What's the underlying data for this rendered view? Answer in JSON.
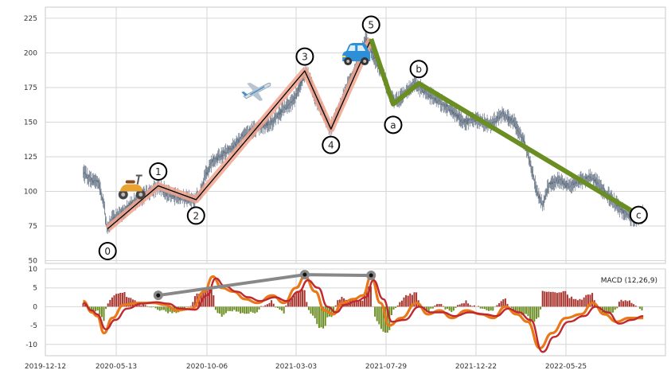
{
  "chart_data": [
    {
      "type": "line",
      "panel": "price",
      "x_ticks": [
        "2019-12-12",
        "2020-05-13",
        "2020-10-06",
        "2021-03-03",
        "2021-07-29",
        "2021-12-22",
        "2022-05-25"
      ],
      "y_ticks": [
        50,
        75,
        100,
        125,
        150,
        175,
        200,
        225
      ],
      "ylim": [
        48,
        233
      ],
      "grid": true,
      "price_series": [
        {
          "x": "2020-02-15",
          "y": 113
        },
        {
          "x": "2020-03-01",
          "y": 108
        },
        {
          "x": "2020-03-12",
          "y": 106
        },
        {
          "x": "2020-03-22",
          "y": 90
        },
        {
          "x": "2020-03-27",
          "y": 72
        },
        {
          "x": "2020-04-05",
          "y": 80
        },
        {
          "x": "2020-04-20",
          "y": 84
        },
        {
          "x": "2020-05-05",
          "y": 90
        },
        {
          "x": "2020-05-25",
          "y": 96
        },
        {
          "x": "2020-06-10",
          "y": 100
        },
        {
          "x": "2020-06-25",
          "y": 104
        },
        {
          "x": "2020-07-10",
          "y": 98
        },
        {
          "x": "2020-07-25",
          "y": 96
        },
        {
          "x": "2020-08-10",
          "y": 95
        },
        {
          "x": "2020-08-25",
          "y": 94
        },
        {
          "x": "2020-09-05",
          "y": 100
        },
        {
          "x": "2020-09-12",
          "y": 112
        },
        {
          "x": "2020-09-25",
          "y": 122
        },
        {
          "x": "2020-10-10",
          "y": 126
        },
        {
          "x": "2020-10-30",
          "y": 132
        },
        {
          "x": "2020-11-20",
          "y": 142
        },
        {
          "x": "2020-12-10",
          "y": 146
        },
        {
          "x": "2021-01-05",
          "y": 150
        },
        {
          "x": "2021-01-25",
          "y": 160
        },
        {
          "x": "2021-02-12",
          "y": 166
        },
        {
          "x": "2021-02-25",
          "y": 180
        },
        {
          "x": "2021-03-05",
          "y": 187
        },
        {
          "x": "2021-03-20",
          "y": 168
        },
        {
          "x": "2021-04-05",
          "y": 154
        },
        {
          "x": "2021-04-15",
          "y": 145
        },
        {
          "x": "2021-04-30",
          "y": 160
        },
        {
          "x": "2021-05-15",
          "y": 178
        },
        {
          "x": "2021-05-30",
          "y": 190
        },
        {
          "x": "2021-06-15",
          "y": 210
        },
        {
          "x": "2021-06-30",
          "y": 196
        },
        {
          "x": "2021-07-15",
          "y": 185
        },
        {
          "x": "2021-07-25",
          "y": 170
        },
        {
          "x": "2021-08-05",
          "y": 165
        },
        {
          "x": "2021-08-20",
          "y": 170
        },
        {
          "x": "2021-09-05",
          "y": 178
        },
        {
          "x": "2021-09-25",
          "y": 172
        },
        {
          "x": "2021-10-15",
          "y": 166
        },
        {
          "x": "2021-11-05",
          "y": 160
        },
        {
          "x": "2021-11-30",
          "y": 150
        },
        {
          "x": "2021-12-20",
          "y": 152
        },
        {
          "x": "2022-01-15",
          "y": 148
        },
        {
          "x": "2022-02-05",
          "y": 156
        },
        {
          "x": "2022-02-25",
          "y": 150
        },
        {
          "x": "2022-03-15",
          "y": 135
        },
        {
          "x": "2022-03-25",
          "y": 120
        },
        {
          "x": "2022-04-05",
          "y": 100
        },
        {
          "x": "2022-04-15",
          "y": 90
        },
        {
          "x": "2022-04-25",
          "y": 104
        },
        {
          "x": "2022-05-10",
          "y": 108
        },
        {
          "x": "2022-05-30",
          "y": 104
        },
        {
          "x": "2022-06-20",
          "y": 108
        },
        {
          "x": "2022-07-10",
          "y": 110
        },
        {
          "x": "2022-07-25",
          "y": 102
        },
        {
          "x": "2022-08-10",
          "y": 95
        },
        {
          "x": "2022-08-25",
          "y": 88
        },
        {
          "x": "2022-09-10",
          "y": 82
        },
        {
          "x": "2022-09-25",
          "y": 80
        },
        {
          "x": "2022-10-05",
          "y": 84
        }
      ],
      "wave_labels": [
        {
          "label": "0",
          "x": "2020-03-28",
          "y": 73
        },
        {
          "label": "1",
          "x": "2020-06-23",
          "y": 104
        },
        {
          "label": "2",
          "x": "2020-08-27",
          "y": 94
        },
        {
          "label": "3",
          "x": "2021-03-02",
          "y": 187
        },
        {
          "label": "4",
          "x": "2021-04-16",
          "y": 145
        },
        {
          "label": "5",
          "x": "2021-06-24",
          "y": 210
        },
        {
          "label": "a",
          "x": "2021-08-01",
          "y": 163
        },
        {
          "label": "b",
          "x": "2021-09-14",
          "y": 178
        },
        {
          "label": "c",
          "x": "2022-09-27",
          "y": 83
        }
      ],
      "impulse_color": "#f0a58e",
      "corrective_color": "#6b8e23",
      "icons": [
        "scooter-icon",
        "airplane-icon",
        "car-icon"
      ]
    },
    {
      "type": "bar",
      "panel": "macd",
      "legend": "MACD (12,26,9)",
      "y_ticks": [
        10,
        5,
        0,
        -5,
        -10
      ],
      "ylim": [
        -13,
        10
      ],
      "grid": true,
      "macd_line": [
        {
          "x": "2020-02-15",
          "y": 1.5
        },
        {
          "x": "2020-03-01",
          "y": -1.5
        },
        {
          "x": "2020-03-10",
          "y": -2.5
        },
        {
          "x": "2020-03-22",
          "y": -7
        },
        {
          "x": "2020-04-05",
          "y": -3
        },
        {
          "x": "2020-04-25",
          "y": 0.5
        },
        {
          "x": "2020-05-20",
          "y": 1
        },
        {
          "x": "2020-06-15",
          "y": 1
        },
        {
          "x": "2020-07-05",
          "y": 0.5
        },
        {
          "x": "2020-07-25",
          "y": -1
        },
        {
          "x": "2020-08-20",
          "y": -0.5
        },
        {
          "x": "2020-09-10",
          "y": 4
        },
        {
          "x": "2020-09-25",
          "y": 8
        },
        {
          "x": "2020-10-10",
          "y": 5
        },
        {
          "x": "2020-10-30",
          "y": 4
        },
        {
          "x": "2020-11-20",
          "y": 2
        },
        {
          "x": "2020-12-10",
          "y": 1
        },
        {
          "x": "2021-01-05",
          "y": 3
        },
        {
          "x": "2021-01-25",
          "y": 1
        },
        {
          "x": "2021-02-15",
          "y": 5
        },
        {
          "x": "2021-03-02",
          "y": 8
        },
        {
          "x": "2021-03-20",
          "y": 4
        },
        {
          "x": "2021-04-05",
          "y": -1
        },
        {
          "x": "2021-04-20",
          "y": -2
        },
        {
          "x": "2021-05-05",
          "y": 1
        },
        {
          "x": "2021-05-25",
          "y": 2
        },
        {
          "x": "2021-06-10",
          "y": 3
        },
        {
          "x": "2021-06-24",
          "y": 8
        },
        {
          "x": "2021-07-10",
          "y": 1
        },
        {
          "x": "2021-07-25",
          "y": -5
        },
        {
          "x": "2021-08-15",
          "y": -3
        },
        {
          "x": "2021-09-10",
          "y": 1
        },
        {
          "x": "2021-09-30",
          "y": -2
        },
        {
          "x": "2021-10-20",
          "y": -1
        },
        {
          "x": "2021-11-10",
          "y": -3
        },
        {
          "x": "2021-12-05",
          "y": -1
        },
        {
          "x": "2021-12-30",
          "y": -2
        },
        {
          "x": "2022-01-20",
          "y": -3
        },
        {
          "x": "2022-02-10",
          "y": 0
        },
        {
          "x": "2022-03-01",
          "y": -2
        },
        {
          "x": "2022-03-20",
          "y": -4
        },
        {
          "x": "2022-04-10",
          "y": -11
        },
        {
          "x": "2022-05-01",
          "y": -7
        },
        {
          "x": "2022-05-25",
          "y": -3
        },
        {
          "x": "2022-06-20",
          "y": -2
        },
        {
          "x": "2022-07-10",
          "y": 1
        },
        {
          "x": "2022-07-30",
          "y": -2
        },
        {
          "x": "2022-08-20",
          "y": -4
        },
        {
          "x": "2022-09-10",
          "y": -3
        },
        {
          "x": "2022-10-05",
          "y": -3
        }
      ],
      "signal_line": [
        {
          "x": "2020-02-15",
          "y": 1
        },
        {
          "x": "2020-03-01",
          "y": -1
        },
        {
          "x": "2020-03-10",
          "y": -2
        },
        {
          "x": "2020-03-25",
          "y": -6
        },
        {
          "x": "2020-04-10",
          "y": -3.5
        },
        {
          "x": "2020-05-01",
          "y": -0.5
        },
        {
          "x": "2020-05-25",
          "y": 0.8
        },
        {
          "x": "2020-06-20",
          "y": 1.2
        },
        {
          "x": "2020-07-10",
          "y": 0.8
        },
        {
          "x": "2020-07-30",
          "y": -0.5
        },
        {
          "x": "2020-08-25",
          "y": -0.8
        },
        {
          "x": "2020-09-15",
          "y": 3
        },
        {
          "x": "2020-09-30",
          "y": 7.5
        },
        {
          "x": "2020-10-15",
          "y": 5.5
        },
        {
          "x": "2020-11-05",
          "y": 4
        },
        {
          "x": "2020-11-25",
          "y": 2.5
        },
        {
          "x": "2020-12-15",
          "y": 1.5
        },
        {
          "x": "2021-01-10",
          "y": 2.5
        },
        {
          "x": "2021-01-30",
          "y": 1.5
        },
        {
          "x": "2021-02-20",
          "y": 4
        },
        {
          "x": "2021-03-07",
          "y": 7
        },
        {
          "x": "2021-03-25",
          "y": 5
        },
        {
          "x": "2021-04-10",
          "y": 0
        },
        {
          "x": "2021-04-25",
          "y": -1.5
        },
        {
          "x": "2021-05-10",
          "y": 0.5
        },
        {
          "x": "2021-05-30",
          "y": 1.5
        },
        {
          "x": "2021-06-15",
          "y": 2.5
        },
        {
          "x": "2021-06-28",
          "y": 7
        },
        {
          "x": "2021-07-15",
          "y": 2
        },
        {
          "x": "2021-07-30",
          "y": -4
        },
        {
          "x": "2021-08-20",
          "y": -3.5
        },
        {
          "x": "2021-09-15",
          "y": 0
        },
        {
          "x": "2021-10-05",
          "y": -1.5
        },
        {
          "x": "2021-10-25",
          "y": -1.5
        },
        {
          "x": "2021-11-15",
          "y": -2.5
        },
        {
          "x": "2021-12-10",
          "y": -1.5
        },
        {
          "x": "2022-01-05",
          "y": -2
        },
        {
          "x": "2022-01-25",
          "y": -2.5
        },
        {
          "x": "2022-02-15",
          "y": -0.5
        },
        {
          "x": "2022-03-05",
          "y": -1.5
        },
        {
          "x": "2022-03-25",
          "y": -3.5
        },
        {
          "x": "2022-04-15",
          "y": -12
        },
        {
          "x": "2022-05-05",
          "y": -8
        },
        {
          "x": "2022-05-30",
          "y": -4
        },
        {
          "x": "2022-06-25",
          "y": -2.5
        },
        {
          "x": "2022-07-15",
          "y": 0
        },
        {
          "x": "2022-08-05",
          "y": -1.5
        },
        {
          "x": "2022-08-25",
          "y": -4.5
        },
        {
          "x": "2022-09-15",
          "y": -3.5
        },
        {
          "x": "2022-10-05",
          "y": -2.5
        }
      ],
      "divergence_line": [
        {
          "x": "2020-06-23",
          "y": 3
        },
        {
          "x": "2021-03-02",
          "y": 8.5
        },
        {
          "x": "2021-06-24",
          "y": 8.3
        }
      ],
      "colors": {
        "macd": "#e8781a",
        "signal": "#c0282e",
        "hist_pos": "#a8332d",
        "hist_neg": "#6b8e23",
        "divergence": "#888888"
      }
    }
  ]
}
